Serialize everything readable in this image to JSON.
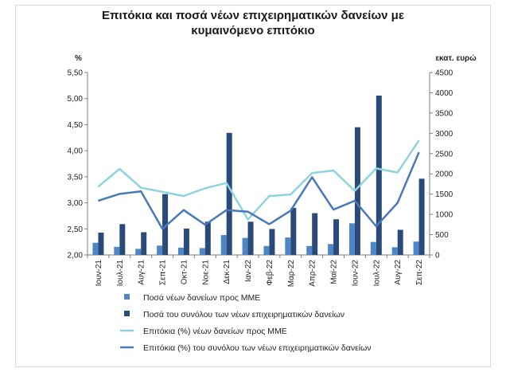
{
  "chart_data": {
    "type": "bar",
    "title_line1": "Επιτόκια και ποσά νέων επιχειρηματικών δανείων με",
    "title_line2": "κυμαινόμενο επιτόκιο",
    "y_left_label": "%",
    "y_right_label": "εκατ. ευρώ",
    "y_left_lim": [
      2.0,
      5.5
    ],
    "y_left_ticks": [
      "2,00",
      "2,50",
      "3,00",
      "3,50",
      "4,00",
      "4,50",
      "5,00",
      "5,50"
    ],
    "y_right_lim": [
      0,
      4500
    ],
    "y_right_ticks": [
      "0",
      "500",
      "1000",
      "1500",
      "2000",
      "2500",
      "3000",
      "3500",
      "4000",
      "4500"
    ],
    "categories": [
      "Ιουν-21",
      "Ιουλ-21",
      "Αυγ-21",
      "Σεπ-21",
      "Οκτ-21",
      "Νοε-21",
      "Δεκ-21",
      "Ιαν-22",
      "Φεβ-22",
      "Μαρ-22",
      "Απρ-22",
      "Μαϊ-22",
      "Ιουν-22",
      "Ιουλ-22",
      "Αυγ-22",
      "Σεπ-22"
    ],
    "series": [
      {
        "name": "Ποσά νέων δανείων προς ΜΜΕ",
        "kind": "bar",
        "axis": "right",
        "color": "#4f86c6",
        "values": [
          300,
          200,
          150,
          230,
          180,
          170,
          490,
          420,
          220,
          430,
          220,
          270,
          780,
          320,
          190,
          330
        ]
      },
      {
        "name": "Ποσά του συνόλου των νέων επιχειρηματικών δανείων",
        "kind": "bar",
        "axis": "right",
        "color": "#2a4a7a",
        "values": [
          550,
          760,
          560,
          1500,
          650,
          820,
          3010,
          820,
          640,
          1160,
          1030,
          880,
          3150,
          3930,
          620,
          1880
        ]
      },
      {
        "name": "Επιτόκια (%) νέων δανείων προς ΜΜΕ",
        "kind": "line",
        "axis": "left",
        "color": "#8fd3e0",
        "values": [
          3.31,
          3.65,
          3.29,
          3.21,
          3.13,
          3.28,
          3.38,
          2.68,
          3.13,
          3.16,
          3.57,
          3.62,
          3.23,
          3.66,
          3.58,
          4.2
        ]
      },
      {
        "name": "Επιτόκια (%) του συνόλου των νέων επιχειρηματικών δανείων",
        "kind": "line",
        "axis": "left",
        "color": "#4a78b8",
        "values": [
          3.04,
          3.17,
          3.22,
          2.5,
          2.86,
          2.58,
          2.86,
          2.83,
          2.59,
          2.85,
          3.49,
          2.87,
          3.04,
          2.55,
          3.0,
          3.97
        ]
      }
    ],
    "legend_position": "bottom",
    "grid": false
  }
}
